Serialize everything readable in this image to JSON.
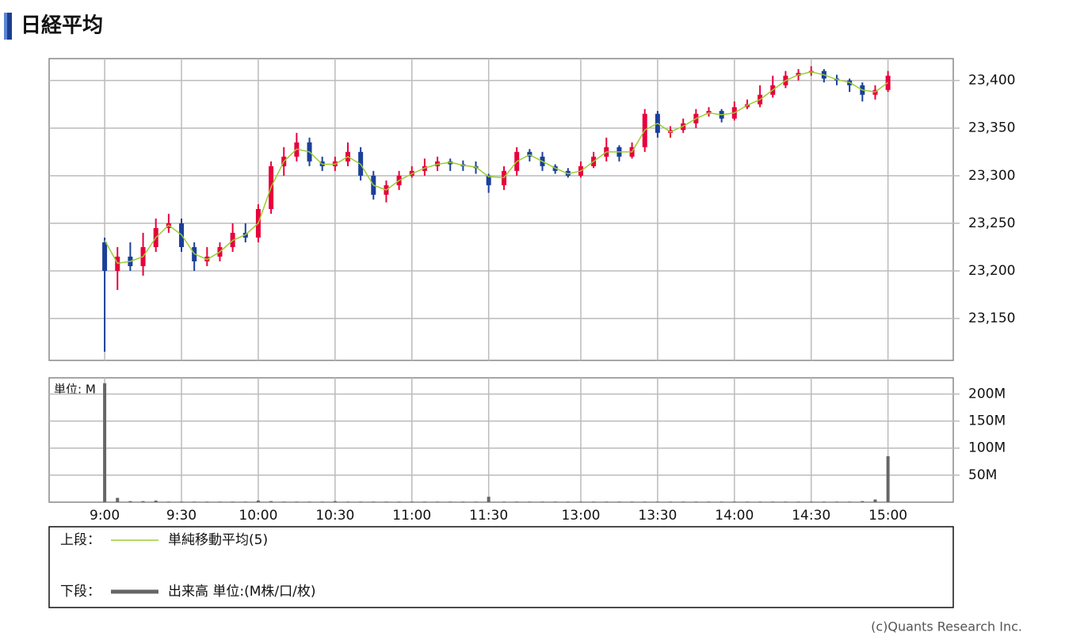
{
  "header": {
    "title": "日経平均"
  },
  "chart_data": [
    {
      "type": "candlestick",
      "x": [
        0,
        5,
        10,
        15,
        20,
        25,
        30,
        35,
        40,
        45,
        50,
        55,
        60,
        65,
        70,
        75,
        80,
        85,
        90,
        95,
        100,
        105,
        110,
        115,
        120,
        125,
        130,
        135,
        140,
        145,
        150,
        156,
        161,
        166,
        171,
        176,
        181,
        186,
        191,
        196,
        201,
        206,
        211,
        216,
        221,
        226,
        231,
        236,
        241,
        246,
        251,
        256,
        261,
        266,
        271,
        276,
        281,
        286,
        291,
        296,
        301,
        306
      ],
      "open": [
        23230,
        23200,
        23215,
        23205,
        23225,
        23245,
        23250,
        23225,
        23210,
        23215,
        23225,
        23240,
        23235,
        23265,
        23310,
        23320,
        23335,
        23315,
        23310,
        23315,
        23325,
        23300,
        23280,
        23290,
        23300,
        23305,
        23310,
        23315,
        23312,
        23310,
        23300,
        23290,
        23305,
        23325,
        23320,
        23310,
        23305,
        23300,
        23310,
        23320,
        23330,
        23320,
        23330,
        23365,
        23345,
        23348,
        23355,
        23365,
        23368,
        23360,
        23372,
        23375,
        23385,
        23395,
        23405,
        23408,
        23410,
        23402,
        23400,
        23395,
        23385,
        23390
      ],
      "high": [
        23235,
        23225,
        23230,
        23240,
        23255,
        23260,
        23255,
        23230,
        23225,
        23230,
        23250,
        23250,
        23270,
        23315,
        23330,
        23345,
        23340,
        23320,
        23320,
        23335,
        23330,
        23305,
        23295,
        23305,
        23310,
        23318,
        23320,
        23318,
        23316,
        23315,
        23302,
        23310,
        23330,
        23328,
        23325,
        23312,
        23308,
        23315,
        23325,
        23340,
        23332,
        23335,
        23370,
        23368,
        23352,
        23360,
        23370,
        23372,
        23370,
        23378,
        23380,
        23395,
        23405,
        23410,
        23412,
        23415,
        23412,
        23406,
        23402,
        23398,
        23395,
        23410
      ],
      "low": [
        23115,
        23180,
        23200,
        23195,
        23220,
        23240,
        23220,
        23200,
        23205,
        23210,
        23220,
        23230,
        23230,
        23260,
        23300,
        23315,
        23310,
        23305,
        23305,
        23310,
        23295,
        23275,
        23272,
        23285,
        23298,
        23300,
        23305,
        23305,
        23305,
        23302,
        23282,
        23285,
        23300,
        23315,
        23305,
        23302,
        23298,
        23298,
        23308,
        23315,
        23315,
        23318,
        23325,
        23340,
        23340,
        23345,
        23350,
        23362,
        23356,
        23358,
        23370,
        23372,
        23382,
        23392,
        23400,
        23405,
        23398,
        23395,
        23388,
        23378,
        23380,
        23388
      ],
      "close": [
        23200,
        23215,
        23205,
        23225,
        23245,
        23250,
        23225,
        23210,
        23215,
        23225,
        23240,
        23235,
        23265,
        23310,
        23320,
        23335,
        23315,
        23310,
        23315,
        23325,
        23300,
        23280,
        23290,
        23300,
        23305,
        23310,
        23315,
        23312,
        23310,
        23308,
        23290,
        23305,
        23325,
        23320,
        23310,
        23305,
        23300,
        23310,
        23320,
        23330,
        23320,
        23330,
        23365,
        23345,
        23348,
        23355,
        23365,
        23368,
        23360,
        23372,
        23375,
        23385,
        23395,
        23405,
        23408,
        23410,
        23402,
        23400,
        23395,
        23385,
        23390,
        23405
      ],
      "up_color": "#e8003c",
      "down_color": "#1b3f9a",
      "ma": {
        "name": "単純移動平均(5)",
        "color": "#9acd32",
        "values": [
          23232,
          23208,
          23210,
          23215,
          23235,
          23248,
          23238,
          23218,
          23212,
          23220,
          23232,
          23238,
          23250,
          23288,
          23315,
          23328,
          23325,
          23312,
          23312,
          23320,
          23312,
          23290,
          23285,
          23295,
          23302,
          23308,
          23312,
          23314,
          23311,
          23309,
          23299,
          23298,
          23315,
          23322,
          23315,
          23308,
          23302,
          23305,
          23315,
          23325,
          23325,
          23325,
          23348,
          23355,
          23346,
          23352,
          23360,
          23366,
          23364,
          23366,
          23374,
          23380,
          23390,
          23400,
          23406,
          23409,
          23406,
          23401,
          23398,
          23390,
          23388,
          23398
        ]
      },
      "xlim": [
        -21.7,
        331.5
      ],
      "ylim": [
        23106,
        23423
      ],
      "yticks": [
        {
          "value": 23150,
          "label": "23,150"
        },
        {
          "value": 23200,
          "label": "23,200"
        },
        {
          "value": 23250,
          "label": "23,250"
        },
        {
          "value": 23300,
          "label": "23,300"
        },
        {
          "value": 23350,
          "label": "23,350"
        },
        {
          "value": 23400,
          "label": "23,400"
        }
      ],
      "grid": true
    },
    {
      "type": "bar",
      "unit_label": "単位: M",
      "series": [
        {
          "name": "出来高 単位:(M株/口/枚)",
          "color": "#666666",
          "values": [
            220,
            8,
            2,
            2,
            3,
            1,
            1,
            1,
            1,
            1,
            1,
            1,
            3,
            2,
            1,
            1,
            1,
            1,
            2,
            1,
            1,
            1,
            1,
            1,
            1,
            1,
            1,
            1,
            1,
            1,
            10,
            1,
            1,
            1,
            1,
            1,
            1,
            1,
            1,
            1,
            1,
            1,
            1,
            1,
            1,
            1,
            1,
            1,
            1,
            1,
            1,
            1,
            1,
            1,
            1,
            1,
            1,
            1,
            1,
            2,
            5,
            85
          ]
        }
      ],
      "xlim": [
        -21.7,
        331.5
      ],
      "ylim": [
        0,
        230
      ],
      "xticks": [
        {
          "value": 0,
          "label": "9:00"
        },
        {
          "value": 30,
          "label": "9:30"
        },
        {
          "value": 60,
          "label": "10:00"
        },
        {
          "value": 90,
          "label": "10:30"
        },
        {
          "value": 120,
          "label": "11:00"
        },
        {
          "value": 150,
          "label": "11:30"
        },
        {
          "value": 186,
          "label": "13:00"
        },
        {
          "value": 216,
          "label": "13:30"
        },
        {
          "value": 246,
          "label": "14:00"
        },
        {
          "value": 276,
          "label": "14:30"
        },
        {
          "value": 306,
          "label": "15:00"
        }
      ],
      "yticks": [
        {
          "value": 50,
          "label": "50M"
        },
        {
          "value": 100,
          "label": "100M"
        },
        {
          "value": 150,
          "label": "150M"
        },
        {
          "value": 200,
          "label": "200M"
        }
      ],
      "grid": true
    }
  ],
  "legend": {
    "upper": "上段：",
    "lower": "下段："
  },
  "footer": {
    "copyright": "(c)Quants Research Inc."
  }
}
